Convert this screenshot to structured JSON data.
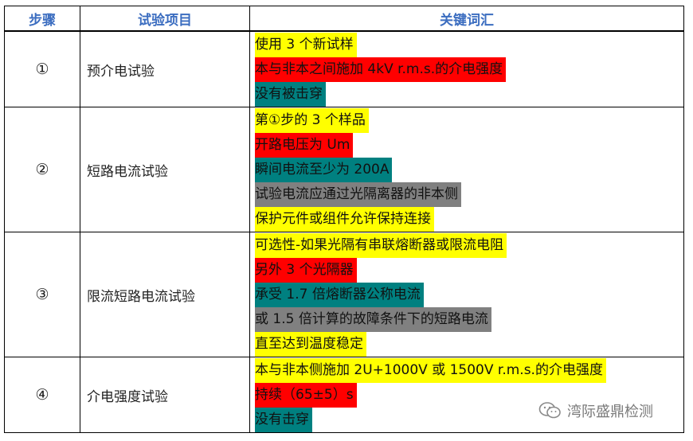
{
  "table": {
    "headers": [
      "步骤",
      "试验项目",
      "关键词汇"
    ],
    "rows": [
      {
        "step": "①",
        "name": "预介电试验",
        "keywords": [
          {
            "text": "使用 3 个新试样",
            "color": "yellow"
          },
          {
            "text": "本与非本之间施加 4kV r.m.s.的介电强度",
            "color": "red"
          },
          {
            "text": "没有被击穿",
            "color": "teal"
          }
        ]
      },
      {
        "step": "②",
        "name": "短路电流试验",
        "keywords": [
          {
            "text": "第①步的 3 个样品",
            "color": "yellow"
          },
          {
            "text": "开路电压为 Um",
            "color": "red"
          },
          {
            "text": "瞬间电流至少为 200A",
            "color": "teal"
          },
          {
            "text": "试验电流应通过光隔离器的非本侧",
            "color": "gray"
          },
          {
            "text": "保护元件或组件允许保持连接",
            "color": "yellow"
          }
        ]
      },
      {
        "step": "③",
        "name": "限流短路电流试验",
        "keywords": [
          {
            "text": "可选性-如果光隔有串联熔断器或限流电阻",
            "color": "yellow"
          },
          {
            "text": "另外 3 个光隔器",
            "color": "red"
          },
          {
            "text": "承受 1.7 倍熔断器公称电流",
            "color": "teal"
          },
          {
            "text": "或 1.5 倍计算的故障条件下的短路电流",
            "color": "gray"
          },
          {
            "text": "直至达到温度稳定",
            "color": "yellow"
          }
        ]
      },
      {
        "step": "④",
        "name": "介电强度试验",
        "keywords": [
          {
            "text": "本与非本侧施加 2U+1000V 或 1500V r.m.s.的介电强度",
            "color": "yellow"
          },
          {
            "text": "持续（65±5）s",
            "color": "red"
          },
          {
            "text": "没有击穿",
            "color": "teal"
          }
        ]
      }
    ]
  },
  "watermark": {
    "text": "湾际盛鼎检测",
    "icon": "wechat-icon"
  }
}
